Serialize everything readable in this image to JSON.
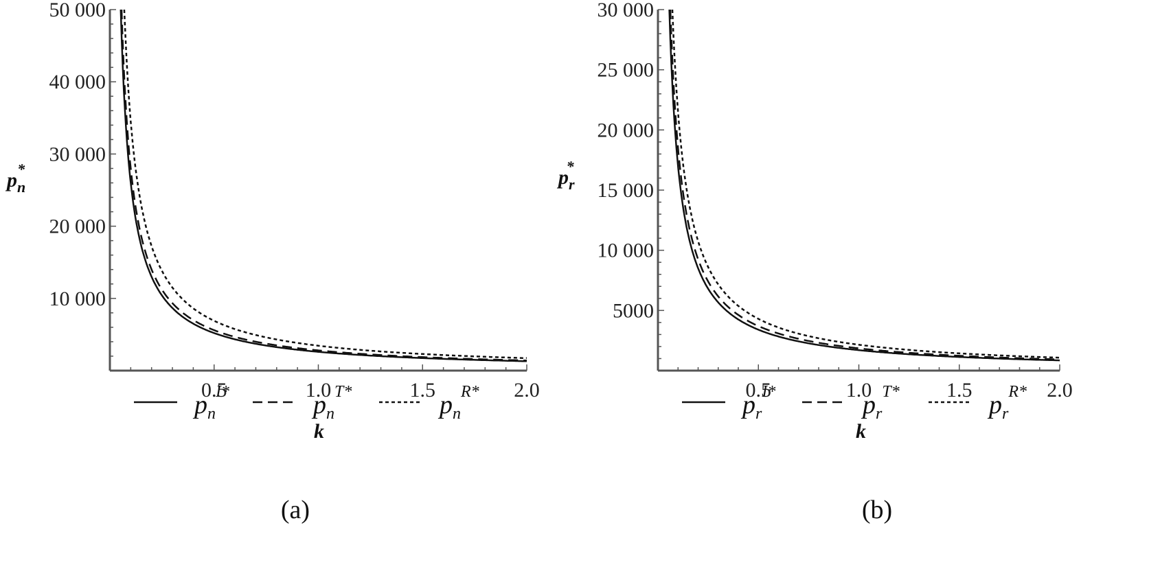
{
  "chart_data": [
    {
      "type": "line",
      "panel_label": "(a)",
      "xlabel": "k",
      "ylabel": {
        "base": "p",
        "sub": "n",
        "sup": "*"
      },
      "xlim": [
        0,
        2.0
      ],
      "ylim": [
        0,
        50000
      ],
      "x_ticks": [
        0.5,
        1.0,
        1.5,
        2.0
      ],
      "x_tick_labels": [
        "0.5",
        "1.0",
        "1.5",
        "2.0"
      ],
      "y_ticks": [
        10000,
        20000,
        30000,
        40000,
        50000
      ],
      "y_tick_labels": [
        "10 000",
        "20 000",
        "30 000",
        "40 000",
        "50 000"
      ],
      "legend_position": "bottom",
      "series": [
        {
          "name": {
            "base": "p",
            "sub": "n",
            "sup": "I*"
          },
          "dash": "solid",
          "coef": 2600
        },
        {
          "name": {
            "base": "p",
            "sub": "n",
            "sup": "T*"
          },
          "dash": "dashed",
          "coef": 2800
        },
        {
          "name": {
            "base": "p",
            "sub": "n",
            "sup": "R*"
          },
          "dash": "dotted",
          "coef": 3450
        }
      ]
    },
    {
      "type": "line",
      "panel_label": "(b)",
      "xlabel": "k",
      "ylabel": {
        "base": "p",
        "sub": "r",
        "sup": "*"
      },
      "xlim": [
        0,
        2.0
      ],
      "ylim": [
        0,
        30000
      ],
      "x_ticks": [
        0.5,
        1.0,
        1.5,
        2.0
      ],
      "x_tick_labels": [
        "0.5",
        "1.0",
        "1.5",
        "2.0"
      ],
      "y_ticks": [
        5000,
        10000,
        15000,
        20000,
        25000,
        30000
      ],
      "y_tick_labels": [
        "5000",
        "10 000",
        "15 000",
        "20 000",
        "25 000",
        "30 000"
      ],
      "legend_position": "bottom",
      "series": [
        {
          "name": {
            "base": "p",
            "sub": "r",
            "sup": "I*"
          },
          "dash": "solid",
          "coef": 1700
        },
        {
          "name": {
            "base": "p",
            "sub": "r",
            "sup": "T*"
          },
          "dash": "dashed",
          "coef": 1850
        },
        {
          "name": {
            "base": "p",
            "sub": "r",
            "sup": "R*"
          },
          "dash": "dotted",
          "coef": 2150
        }
      ]
    }
  ]
}
